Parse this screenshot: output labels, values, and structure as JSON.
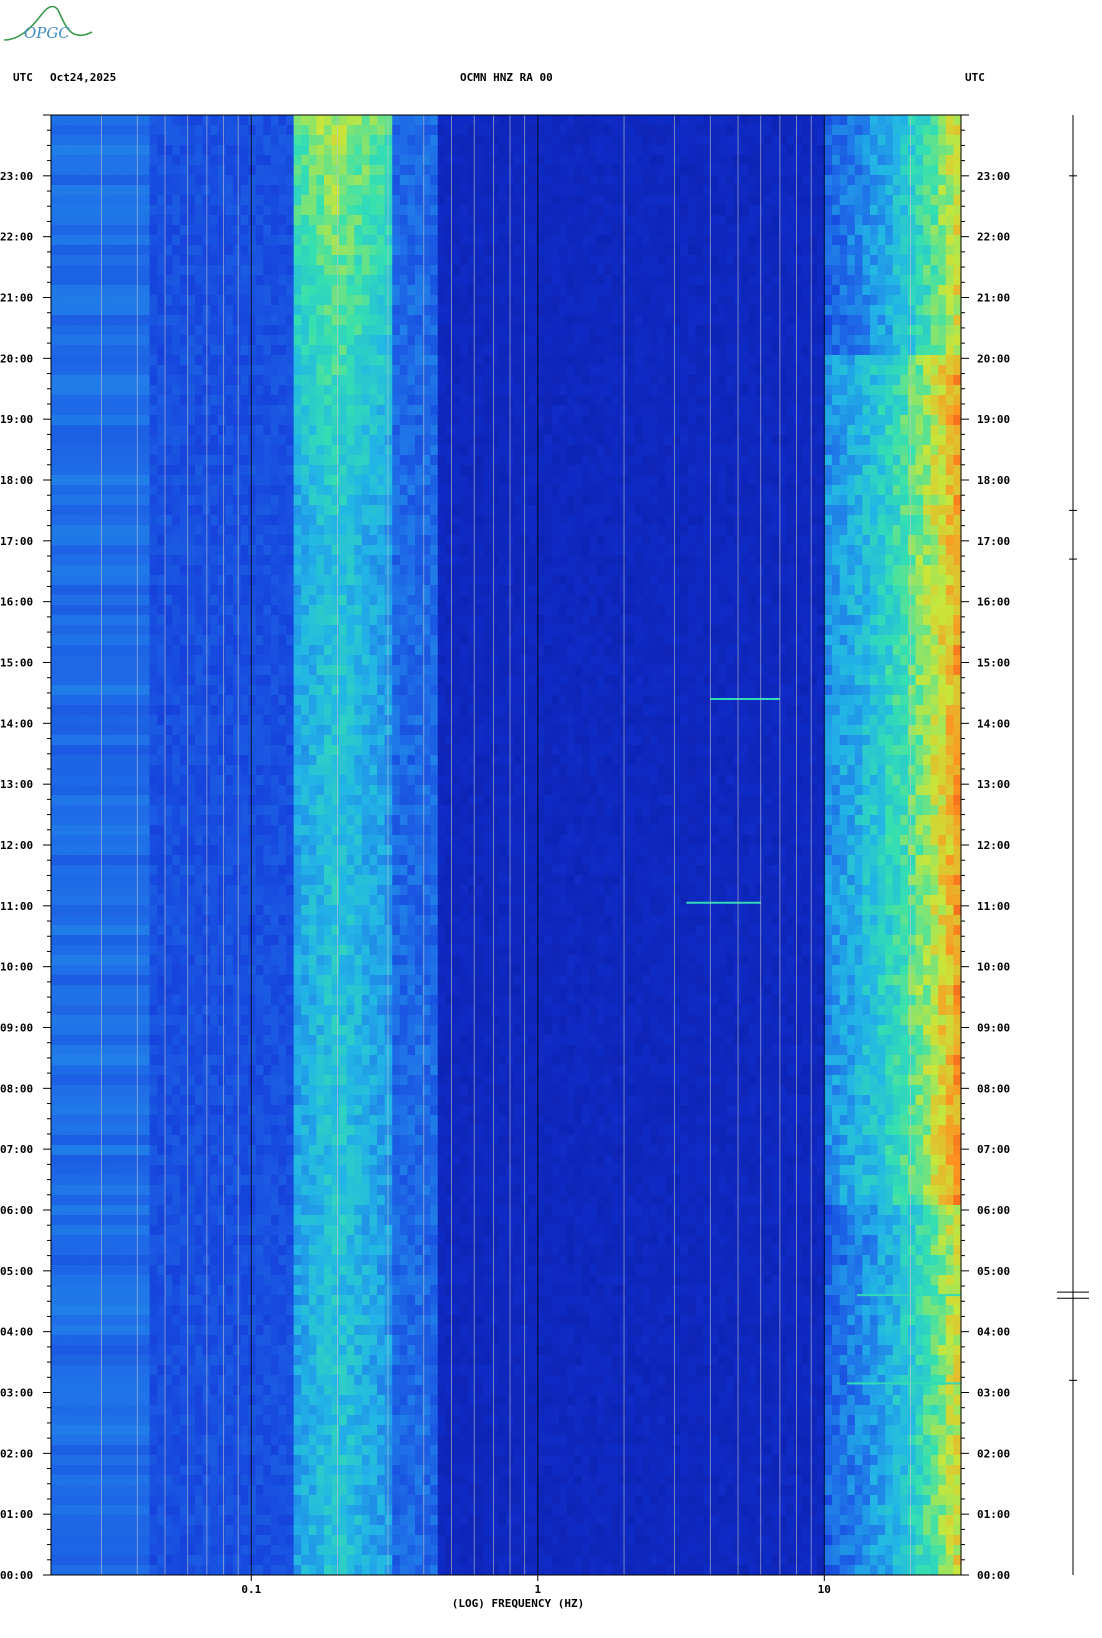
{
  "header": {
    "left_tz": "UTC",
    "date": "Oct24,2025",
    "station": "OCMN HNZ RA 00",
    "right_tz": "UTC"
  },
  "logo": {
    "text": "OPGC",
    "mark": "volcano-silhouette"
  },
  "chart_data": {
    "type": "heatmap",
    "title": "OCMN HNZ RA 00",
    "xlabel": "(LOG) FREQUENCY (HZ)",
    "ylabel": "UTC",
    "x_scale": "log",
    "x_range_hz": [
      0.02,
      30
    ],
    "x_tick_values": [
      0.1,
      1,
      10
    ],
    "x_tick_labels": [
      "0.1",
      "1",
      "10"
    ],
    "y_range_hours": [
      0,
      24
    ],
    "y_tick_values": [
      0,
      1,
      2,
      3,
      4,
      5,
      6,
      7,
      8,
      9,
      10,
      11,
      12,
      13,
      14,
      15,
      16,
      17,
      18,
      19,
      20,
      21,
      22,
      23
    ],
    "y_tick_labels": [
      "00:00",
      "01:00",
      "02:00",
      "03:00",
      "04:00",
      "05:00",
      "06:00",
      "07:00",
      "08:00",
      "09:00",
      "10:00",
      "11:00",
      "12:00",
      "13:00",
      "14:00",
      "15:00",
      "16:00",
      "17:00",
      "18:00",
      "19:00",
      "20:00",
      "21:00",
      "22:00",
      "23:00"
    ],
    "colormap": [
      "#0a1a9e",
      "#1233d8",
      "#1f6ee8",
      "#22b5e6",
      "#35e0b0",
      "#c8e63a",
      "#ff9020",
      "#e02018"
    ],
    "microseism_peak_hz": [
      0.15,
      0.32
    ],
    "high_freq_noise_from_hz": 10,
    "events": [
      {
        "time_h": 14.4,
        "f_range_hz": [
          4,
          7
        ]
      },
      {
        "time_h": 11.05,
        "f_range_hz": [
          3.3,
          6
        ]
      },
      {
        "time_h": 3.15,
        "f_range_hz": [
          12,
          30
        ]
      },
      {
        "time_h": 4.6,
        "f_range_hz": [
          13,
          30
        ]
      }
    ],
    "trace": {
      "spikes_h": [
        4.55,
        4.65,
        3.2,
        17.5,
        16.7,
        23.0
      ]
    }
  },
  "colors": {
    "background": "#0a1a9e",
    "grid": "#c8c8c8",
    "axis": "#000000"
  }
}
